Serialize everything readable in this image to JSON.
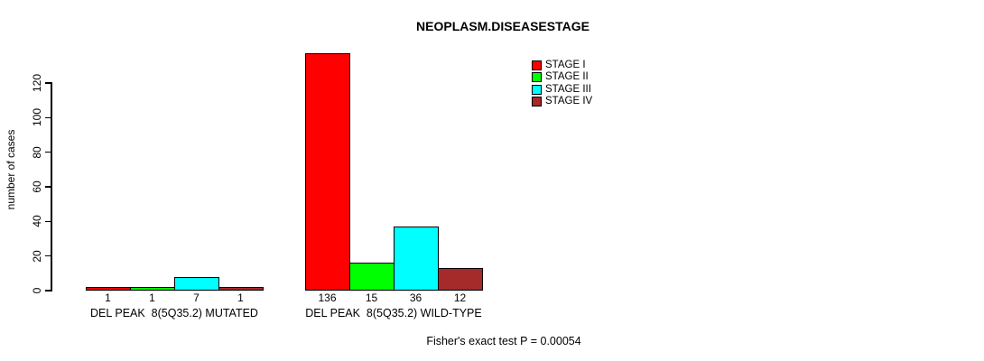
{
  "chart_data": {
    "type": "bar",
    "title": "NEOPLASM.DISEASESTAGE",
    "ylabel": "number of cases",
    "xlabel": "",
    "ylim": [
      0,
      120
    ],
    "yticks": [
      0,
      20,
      40,
      60,
      80,
      100,
      120
    ],
    "grid": false,
    "legend_position": "top-right",
    "background": "#FFFFFF",
    "bar_border_color": "#000000",
    "categories": [
      "DEL PEAK  8(5Q35.2) MUTATED",
      "DEL PEAK  8(5Q35.2) WILD-TYPE"
    ],
    "series": [
      {
        "name": "STAGE I",
        "color": "#FF0000",
        "values": [
          1,
          136
        ]
      },
      {
        "name": "STAGE II",
        "color": "#00FF00",
        "values": [
          1,
          15
        ]
      },
      {
        "name": "STAGE III",
        "color": "#00FFFF",
        "values": [
          7,
          36
        ]
      },
      {
        "name": "STAGE IV",
        "color": "#A52A2A",
        "values": [
          1,
          12
        ]
      }
    ],
    "bar_value_labels": [
      [
        "1",
        "1",
        "7",
        "1"
      ],
      [
        "136",
        "15",
        "36",
        "12"
      ]
    ],
    "annotation": "Fisher's exact test P = 0.00054"
  }
}
